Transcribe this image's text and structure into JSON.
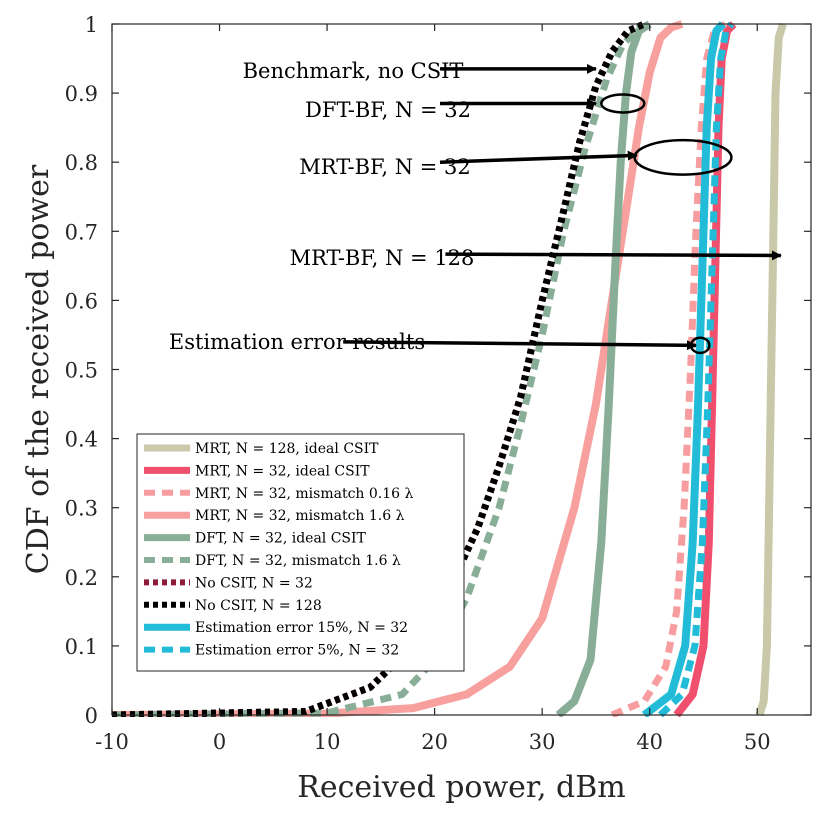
{
  "chart_data": {
    "type": "line",
    "title": "",
    "xlabel": "Received power, dBm",
    "ylabel": "CDF of the received power",
    "xlim": [
      -10,
      55
    ],
    "ylim": [
      0,
      1
    ],
    "grid": false,
    "legend_position": "lower-left",
    "xticks": [
      -10,
      0,
      10,
      20,
      30,
      40,
      50
    ],
    "xtick_labels": [
      "-10",
      "0",
      "10",
      "20",
      "30",
      "40",
      "50"
    ],
    "yticks": [
      0,
      0.1,
      0.2,
      0.3,
      0.4,
      0.5,
      0.6,
      0.7,
      0.8,
      0.9,
      1
    ],
    "ytick_labels": [
      "0",
      "0.1",
      "0.2",
      "0.3",
      "0.4",
      "0.5",
      "0.6",
      "0.7",
      "0.8",
      "0.9",
      "1"
    ],
    "series": [
      {
        "name": "MRT, N = 128, ideal CSIT",
        "color": "#c9c8a8",
        "dash": "solid",
        "x": [
          50.2,
          50.6,
          50.9,
          51.1,
          51.3,
          51.5,
          51.7,
          52.0,
          52.4
        ],
        "y": [
          0,
          0.02,
          0.1,
          0.3,
          0.5,
          0.7,
          0.9,
          0.98,
          1
        ]
      },
      {
        "name": "MRT, N = 32, ideal CSIT",
        "color": "#f0506e",
        "dash": "solid",
        "x": [
          42.5,
          44.0,
          45.0,
          45.5,
          45.8,
          46.1,
          46.4,
          46.7,
          47.2,
          47.8
        ],
        "y": [
          0,
          0.03,
          0.1,
          0.25,
          0.45,
          0.65,
          0.85,
          0.95,
          0.99,
          1
        ]
      },
      {
        "name": "MRT, N = 32, mismatch 0.16 λ",
        "color": "#f79da0",
        "dash": "dash",
        "x": [
          36.5,
          39.5,
          41.5,
          42.5,
          43.2,
          43.8,
          44.3,
          44.8,
          45.3,
          46.0,
          47.0
        ],
        "y": [
          0,
          0.02,
          0.07,
          0.15,
          0.3,
          0.5,
          0.7,
          0.85,
          0.95,
          0.99,
          1
        ]
      },
      {
        "name": "MRT, N = 32, mismatch 1.6 λ",
        "color": "#f7a09e",
        "dash": "solid",
        "x": [
          -10,
          10,
          18,
          23,
          27,
          30,
          33,
          35,
          37,
          38,
          39,
          40,
          41,
          42,
          43
        ],
        "y": [
          0,
          0.002,
          0.01,
          0.03,
          0.07,
          0.14,
          0.3,
          0.45,
          0.65,
          0.75,
          0.85,
          0.93,
          0.98,
          0.995,
          1
        ]
      },
      {
        "name": "DFT, N = 32, ideal CSIT",
        "color": "#89ae98",
        "dash": "solid",
        "x": [
          31.5,
          33.0,
          34.5,
          35.5,
          36.2,
          36.8,
          37.3,
          37.8,
          38.3,
          39.0,
          40.0
        ],
        "y": [
          0,
          0.02,
          0.08,
          0.25,
          0.45,
          0.65,
          0.8,
          0.9,
          0.96,
          0.99,
          1
        ]
      },
      {
        "name": "DFT, N = 32, mismatch 1.6 λ",
        "color": "#89ae98",
        "dash": "dash",
        "x": [
          -10,
          10,
          17,
          20,
          23,
          26,
          28,
          30,
          32,
          34,
          36,
          37.5,
          39,
          40.5
        ],
        "y": [
          0,
          0.003,
          0.03,
          0.08,
          0.17,
          0.3,
          0.42,
          0.55,
          0.7,
          0.82,
          0.92,
          0.97,
          0.995,
          1
        ]
      },
      {
        "name": "No CSIT, N = 32",
        "color": "#8e1b3a",
        "dash": "dot",
        "x": [
          -10,
          8,
          14,
          18,
          21,
          24,
          26,
          28,
          30,
          32,
          33.5,
          35,
          36.5,
          38,
          39.5
        ],
        "y": [
          0,
          0.005,
          0.04,
          0.1,
          0.17,
          0.27,
          0.36,
          0.46,
          0.6,
          0.73,
          0.83,
          0.91,
          0.96,
          0.99,
          1
        ]
      },
      {
        "name": "No CSIT, N = 128",
        "color": "#000000",
        "dash": "dot",
        "x": [
          -10,
          8,
          14,
          18,
          21,
          24,
          26,
          28,
          30,
          32,
          33.5,
          35,
          36.5,
          38,
          39.5
        ],
        "y": [
          0,
          0.005,
          0.04,
          0.1,
          0.17,
          0.27,
          0.36,
          0.46,
          0.6,
          0.73,
          0.83,
          0.91,
          0.96,
          0.99,
          1
        ]
      },
      {
        "name": "Estimation error 15%, N = 32",
        "color": "#22bcd8",
        "dash": "solid",
        "x": [
          39.5,
          42.0,
          43.3,
          44.0,
          44.5,
          44.9,
          45.3,
          45.7,
          46.2,
          46.8
        ],
        "y": [
          0,
          0.03,
          0.1,
          0.25,
          0.45,
          0.65,
          0.85,
          0.95,
          0.99,
          1
        ]
      },
      {
        "name": "Estimation error 5%, N = 32",
        "color": "#22bcd8",
        "dash": "dash",
        "x": [
          41.0,
          43.0,
          44.2,
          44.9,
          45.4,
          45.8,
          46.2,
          46.6,
          47.1,
          47.6
        ],
        "y": [
          0,
          0.03,
          0.1,
          0.25,
          0.45,
          0.65,
          0.85,
          0.95,
          0.99,
          1
        ]
      }
    ],
    "annotations": [
      {
        "text": "Benchmark, no CSIT",
        "arrow_from": [
          20.5,
          0.935
        ],
        "arrow_to": [
          35,
          0.935
        ]
      },
      {
        "text": "DFT-BF, N = 32",
        "arrow_from": [
          20.5,
          0.885
        ],
        "arrow_to": [
          35,
          0.885
        ],
        "ellipse": {
          "cx": 37.5,
          "cy": 0.885,
          "rx": 2.0,
          "ry": 0.013
        }
      },
      {
        "text": "MRT-BF, N = 32",
        "arrow_from": [
          20.5,
          0.8
        ],
        "arrow_to": [
          38.8,
          0.81
        ],
        "ellipse": {
          "cx": 43.1,
          "cy": 0.807,
          "rx": 4.5,
          "ry": 0.025
        }
      },
      {
        "text": "MRT-BF, N = 128",
        "arrow_from": [
          21,
          0.667
        ],
        "arrow_to": [
          52.2,
          0.665
        ]
      },
      {
        "text": "Estimation error results",
        "arrow_from": [
          11.5,
          0.54
        ],
        "arrow_to": [
          44.3,
          0.535
        ],
        "ellipse": {
          "cx": 44.7,
          "cy": 0.535,
          "rx": 0.85,
          "ry": 0.011
        }
      }
    ]
  }
}
